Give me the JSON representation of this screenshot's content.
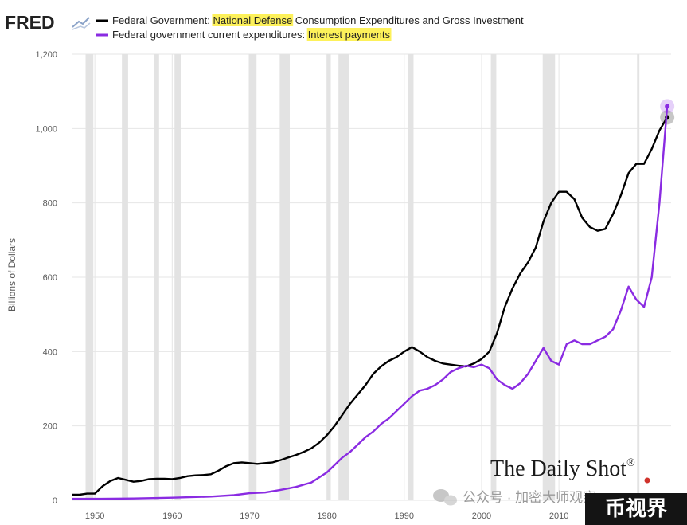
{
  "header": {
    "logo_text": "FRED"
  },
  "legend": [
    {
      "prefix": "Federal Government: ",
      "highlight": "National Defense",
      "suffix": " Consumption Expenditures and Gross Investment",
      "color": "#000000"
    },
    {
      "prefix": "Federal government current expenditures: ",
      "highlight": "Interest payments",
      "suffix": "",
      "color": "#8a2be2"
    }
  ],
  "watermarks": {
    "brand": "The Daily Shot",
    "brand_mark": "®",
    "wechat": "公众号 · 加密大师观察",
    "corner": "币视界"
  },
  "chart_data": {
    "type": "line",
    "ylabel": "Billions of Dollars",
    "xlabel": "",
    "xlim": [
      1947,
      2024.5
    ],
    "ylim": [
      0,
      1200
    ],
    "x_ticks": [
      1950,
      1960,
      1970,
      1980,
      1990,
      2000,
      2010
    ],
    "y_ticks": [
      0,
      200,
      400,
      600,
      800,
      1000,
      1200
    ],
    "y_tick_labels": [
      "0",
      "200",
      "400",
      "600",
      "800",
      "1,000",
      "1,200"
    ],
    "grid": true,
    "recessions": [
      [
        1948.8,
        1949.8
      ],
      [
        1953.5,
        1954.3
      ],
      [
        1957.6,
        1958.3
      ],
      [
        1960.3,
        1961.1
      ],
      [
        1969.9,
        1970.9
      ],
      [
        1973.9,
        1975.2
      ],
      [
        1980.0,
        1980.5
      ],
      [
        1981.5,
        1982.9
      ],
      [
        1990.5,
        1991.2
      ],
      [
        2001.2,
        2001.9
      ],
      [
        2007.9,
        2009.5
      ],
      [
        2020.1,
        2020.4
      ]
    ],
    "series": [
      {
        "name": "Federal Government: National Defense Consumption Expenditures and Gross Investment",
        "color": "#000000",
        "points": [
          [
            1947,
            15
          ],
          [
            1948,
            15
          ],
          [
            1949,
            18
          ],
          [
            1950,
            18
          ],
          [
            1951,
            38
          ],
          [
            1952,
            52
          ],
          [
            1953,
            60
          ],
          [
            1954,
            55
          ],
          [
            1955,
            50
          ],
          [
            1956,
            52
          ],
          [
            1957,
            57
          ],
          [
            1958,
            58
          ],
          [
            1959,
            58
          ],
          [
            1960,
            57
          ],
          [
            1961,
            60
          ],
          [
            1962,
            65
          ],
          [
            1963,
            67
          ],
          [
            1964,
            68
          ],
          [
            1965,
            70
          ],
          [
            1966,
            80
          ],
          [
            1967,
            92
          ],
          [
            1968,
            100
          ],
          [
            1969,
            102
          ],
          [
            1970,
            100
          ],
          [
            1971,
            98
          ],
          [
            1972,
            100
          ],
          [
            1973,
            102
          ],
          [
            1974,
            108
          ],
          [
            1975,
            115
          ],
          [
            1976,
            122
          ],
          [
            1977,
            130
          ],
          [
            1978,
            140
          ],
          [
            1979,
            155
          ],
          [
            1980,
            175
          ],
          [
            1981,
            200
          ],
          [
            1982,
            230
          ],
          [
            1983,
            260
          ],
          [
            1984,
            285
          ],
          [
            1985,
            310
          ],
          [
            1986,
            340
          ],
          [
            1987,
            360
          ],
          [
            1988,
            375
          ],
          [
            1989,
            385
          ],
          [
            1990,
            400
          ],
          [
            1991,
            412
          ],
          [
            1992,
            400
          ],
          [
            1993,
            385
          ],
          [
            1994,
            375
          ],
          [
            1995,
            368
          ],
          [
            1996,
            365
          ],
          [
            1997,
            362
          ],
          [
            1998,
            360
          ],
          [
            1999,
            368
          ],
          [
            2000,
            380
          ],
          [
            2001,
            400
          ],
          [
            2002,
            450
          ],
          [
            2003,
            520
          ],
          [
            2004,
            570
          ],
          [
            2005,
            610
          ],
          [
            2006,
            640
          ],
          [
            2007,
            680
          ],
          [
            2008,
            750
          ],
          [
            2009,
            800
          ],
          [
            2010,
            830
          ],
          [
            2011,
            830
          ],
          [
            2012,
            810
          ],
          [
            2013,
            760
          ],
          [
            2014,
            735
          ],
          [
            2015,
            725
          ],
          [
            2016,
            730
          ],
          [
            2017,
            770
          ],
          [
            2018,
            820
          ],
          [
            2019,
            880
          ],
          [
            2020,
            905
          ],
          [
            2021,
            905
          ],
          [
            2022,
            945
          ],
          [
            2023,
            995
          ],
          [
            2024,
            1030
          ]
        ]
      },
      {
        "name": "Federal government current expenditures: Interest payments",
        "color": "#8a2be2",
        "points": [
          [
            1947,
            4
          ],
          [
            1950,
            4
          ],
          [
            1955,
            5
          ],
          [
            1960,
            7
          ],
          [
            1965,
            10
          ],
          [
            1968,
            14
          ],
          [
            1970,
            19
          ],
          [
            1972,
            21
          ],
          [
            1974,
            28
          ],
          [
            1976,
            36
          ],
          [
            1978,
            48
          ],
          [
            1980,
            75
          ],
          [
            1981,
            95
          ],
          [
            1982,
            115
          ],
          [
            1983,
            130
          ],
          [
            1984,
            150
          ],
          [
            1985,
            170
          ],
          [
            1986,
            185
          ],
          [
            1987,
            205
          ],
          [
            1988,
            220
          ],
          [
            1989,
            240
          ],
          [
            1990,
            260
          ],
          [
            1991,
            280
          ],
          [
            1992,
            295
          ],
          [
            1993,
            300
          ],
          [
            1994,
            310
          ],
          [
            1995,
            325
          ],
          [
            1996,
            345
          ],
          [
            1997,
            355
          ],
          [
            1998,
            362
          ],
          [
            1999,
            358
          ],
          [
            2000,
            365
          ],
          [
            2001,
            355
          ],
          [
            2002,
            325
          ],
          [
            2003,
            310
          ],
          [
            2004,
            300
          ],
          [
            2005,
            315
          ],
          [
            2006,
            340
          ],
          [
            2007,
            375
          ],
          [
            2008,
            410
          ],
          [
            2009,
            375
          ],
          [
            2010,
            365
          ],
          [
            2011,
            420
          ],
          [
            2012,
            430
          ],
          [
            2013,
            420
          ],
          [
            2014,
            420
          ],
          [
            2015,
            430
          ],
          [
            2016,
            440
          ],
          [
            2017,
            460
          ],
          [
            2018,
            510
          ],
          [
            2019,
            575
          ],
          [
            2020,
            540
          ],
          [
            2021,
            520
          ],
          [
            2022,
            600
          ],
          [
            2023,
            800
          ],
          [
            2024,
            1060
          ]
        ]
      }
    ]
  }
}
